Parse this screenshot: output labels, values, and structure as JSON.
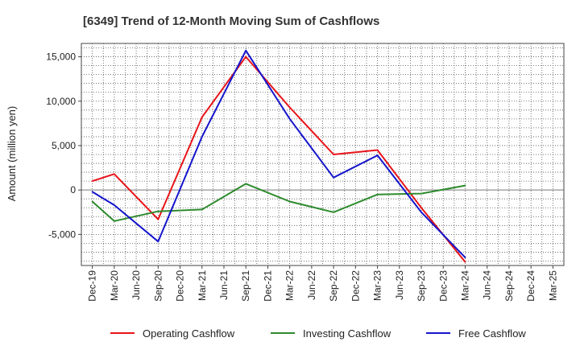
{
  "chart_data": {
    "type": "line",
    "title": "[6349]  Trend of 12-Month Moving Sum of Cashflows",
    "ylabel": "Amount (million yen)",
    "xlabel": "",
    "ylim": [
      -8500,
      16500
    ],
    "yticks": [
      -5000,
      0,
      5000,
      10000,
      15000
    ],
    "ytick_labels": [
      "-5,000",
      "0",
      "5,000",
      "10,000",
      "15,000"
    ],
    "categories": [
      "Dec-19",
      "Mar-20",
      "Jun-20",
      "Sep-20",
      "Dec-20",
      "Mar-21",
      "Jun-21",
      "Sep-21",
      "Dec-21",
      "Mar-22",
      "Jun-22",
      "Sep-22",
      "Dec-22",
      "Mar-23",
      "Jun-23",
      "Sep-23",
      "Dec-23",
      "Mar-24",
      "Jun-24",
      "Sep-24",
      "Dec-24",
      "Mar-25"
    ],
    "grid": true,
    "legend_position": "bottom",
    "series": [
      {
        "name": "Operating Cashflow",
        "color": "#e8141a",
        "values": [
          1000,
          1800,
          null,
          -3300,
          null,
          8200,
          null,
          15000,
          null,
          9300,
          null,
          4000,
          null,
          4500,
          null,
          -2000,
          null,
          -8100,
          null,
          null,
          null,
          null
        ]
      },
      {
        "name": "Investing Cashflow",
        "color": "#2e8b2e",
        "values": [
          -1300,
          -3500,
          null,
          -2400,
          null,
          -2200,
          null,
          700,
          null,
          -1300,
          null,
          -2500,
          null,
          -500,
          null,
          -400,
          null,
          500,
          null,
          null,
          null,
          null
        ]
      },
      {
        "name": "Free Cashflow",
        "color": "#1515cc",
        "values": [
          -200,
          -1700,
          null,
          -5800,
          null,
          6000,
          null,
          15700,
          null,
          8000,
          null,
          1400,
          null,
          3900,
          null,
          -2500,
          null,
          -7600,
          null,
          null,
          null,
          null
        ]
      }
    ]
  }
}
